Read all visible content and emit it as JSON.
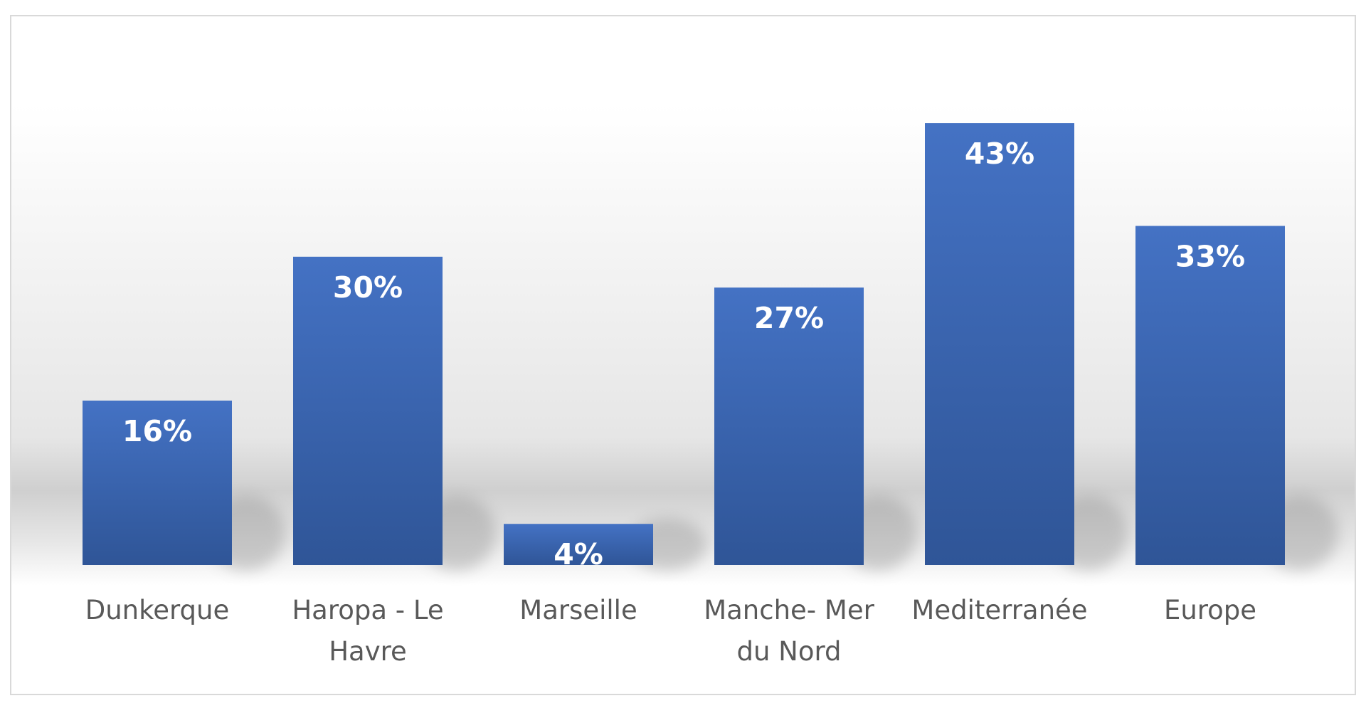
{
  "chart_data": {
    "type": "bar",
    "categories": [
      [
        "Dunkerque"
      ],
      [
        "Haropa - Le",
        "Havre"
      ],
      [
        "Marseille"
      ],
      [
        "Manche- Mer",
        "du Nord"
      ],
      [
        "Mediterranée"
      ],
      [
        "Europe"
      ]
    ],
    "values": [
      16,
      30,
      4,
      27,
      43,
      33
    ],
    "data_labels": [
      "16%",
      "30%",
      "4%",
      "27%",
      "43%",
      "33%"
    ],
    "value_unit": "%",
    "ylim": [
      0,
      50
    ],
    "grid": false,
    "legend": "none",
    "title": "",
    "xlabel": "",
    "ylabel": "",
    "colors": {
      "bar_top": "#4472c4",
      "bar_bottom": "#2f5597",
      "category_text": "#595959",
      "data_label_text": "#ffffff",
      "frame_border": "#d9d9d9",
      "background_band": "#d6d6d6"
    }
  }
}
